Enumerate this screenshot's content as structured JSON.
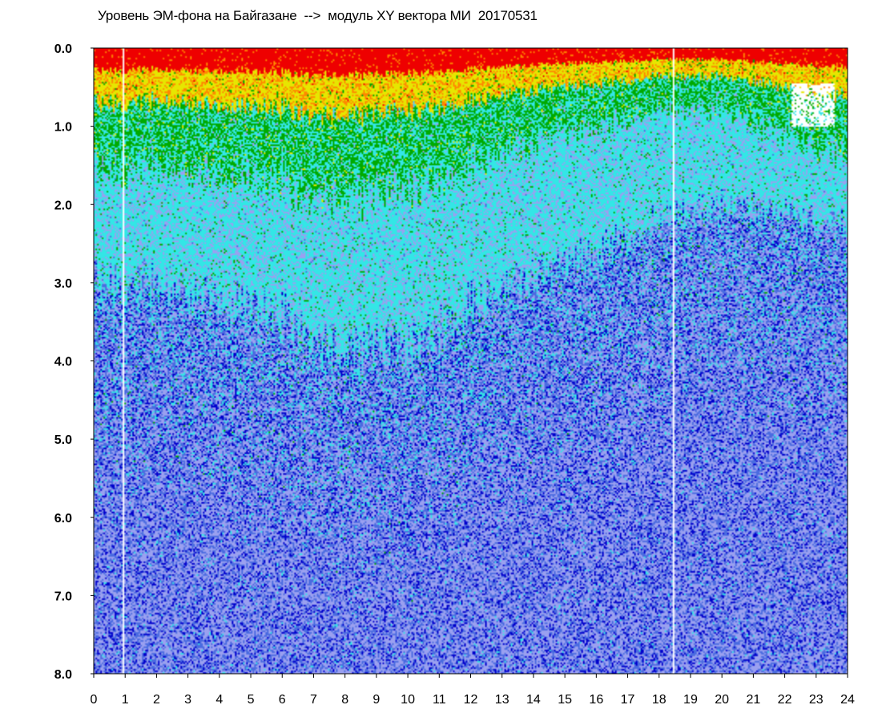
{
  "chart_data": {
    "type": "heatmap",
    "title": "Уровень ЭМ-фона на Байгазане  -->  модуль XY вектора МИ  20170531",
    "xlabel": "",
    "ylabel": "",
    "xlim": [
      0,
      24
    ],
    "ylim": [
      0.0,
      8.0
    ],
    "y_inverted": true,
    "x_ticks": [
      "0",
      "1",
      "2",
      "3",
      "4",
      "5",
      "6",
      "7",
      "8",
      "9",
      "10",
      "11",
      "12",
      "13",
      "14",
      "15",
      "16",
      "17",
      "18",
      "19",
      "20",
      "21",
      "22",
      "23",
      "24"
    ],
    "y_ticks": [
      "0.0",
      "1.0",
      "2.0",
      "3.0",
      "4.0",
      "5.0",
      "6.0",
      "7.0",
      "8.0"
    ],
    "grid": false,
    "legend": "none",
    "color_scale": [
      "#0000cc",
      "#4a6be0",
      "#9aa0f0",
      "#33e6e6",
      "#00aa00",
      "#e6e600",
      "#ff8800",
      "#ee0000",
      "#ffffff"
    ],
    "gaps_hours": [
      0.9,
      18.45
    ],
    "intensity_profile_by_hour": [
      {
        "x": 0,
        "green_to": 1.6,
        "cyan_to": 3.0
      },
      {
        "x": 2,
        "green_to": 1.5,
        "cyan_to": 3.0
      },
      {
        "x": 4,
        "green_to": 1.6,
        "cyan_to": 3.2
      },
      {
        "x": 6,
        "green_to": 1.7,
        "cyan_to": 3.4
      },
      {
        "x": 8,
        "green_to": 2.0,
        "cyan_to": 4.0
      },
      {
        "x": 10,
        "green_to": 1.8,
        "cyan_to": 3.8
      },
      {
        "x": 12,
        "green_to": 1.5,
        "cyan_to": 3.3
      },
      {
        "x": 14,
        "green_to": 1.2,
        "cyan_to": 2.9
      },
      {
        "x": 16,
        "green_to": 1.0,
        "cyan_to": 2.6
      },
      {
        "x": 18,
        "green_to": 0.8,
        "cyan_to": 2.2
      },
      {
        "x": 20,
        "green_to": 0.8,
        "cyan_to": 2.0
      },
      {
        "x": 22,
        "green_to": 1.1,
        "cyan_to": 2.1
      },
      {
        "x": 24,
        "green_to": 1.4,
        "cyan_to": 2.3
      }
    ]
  }
}
